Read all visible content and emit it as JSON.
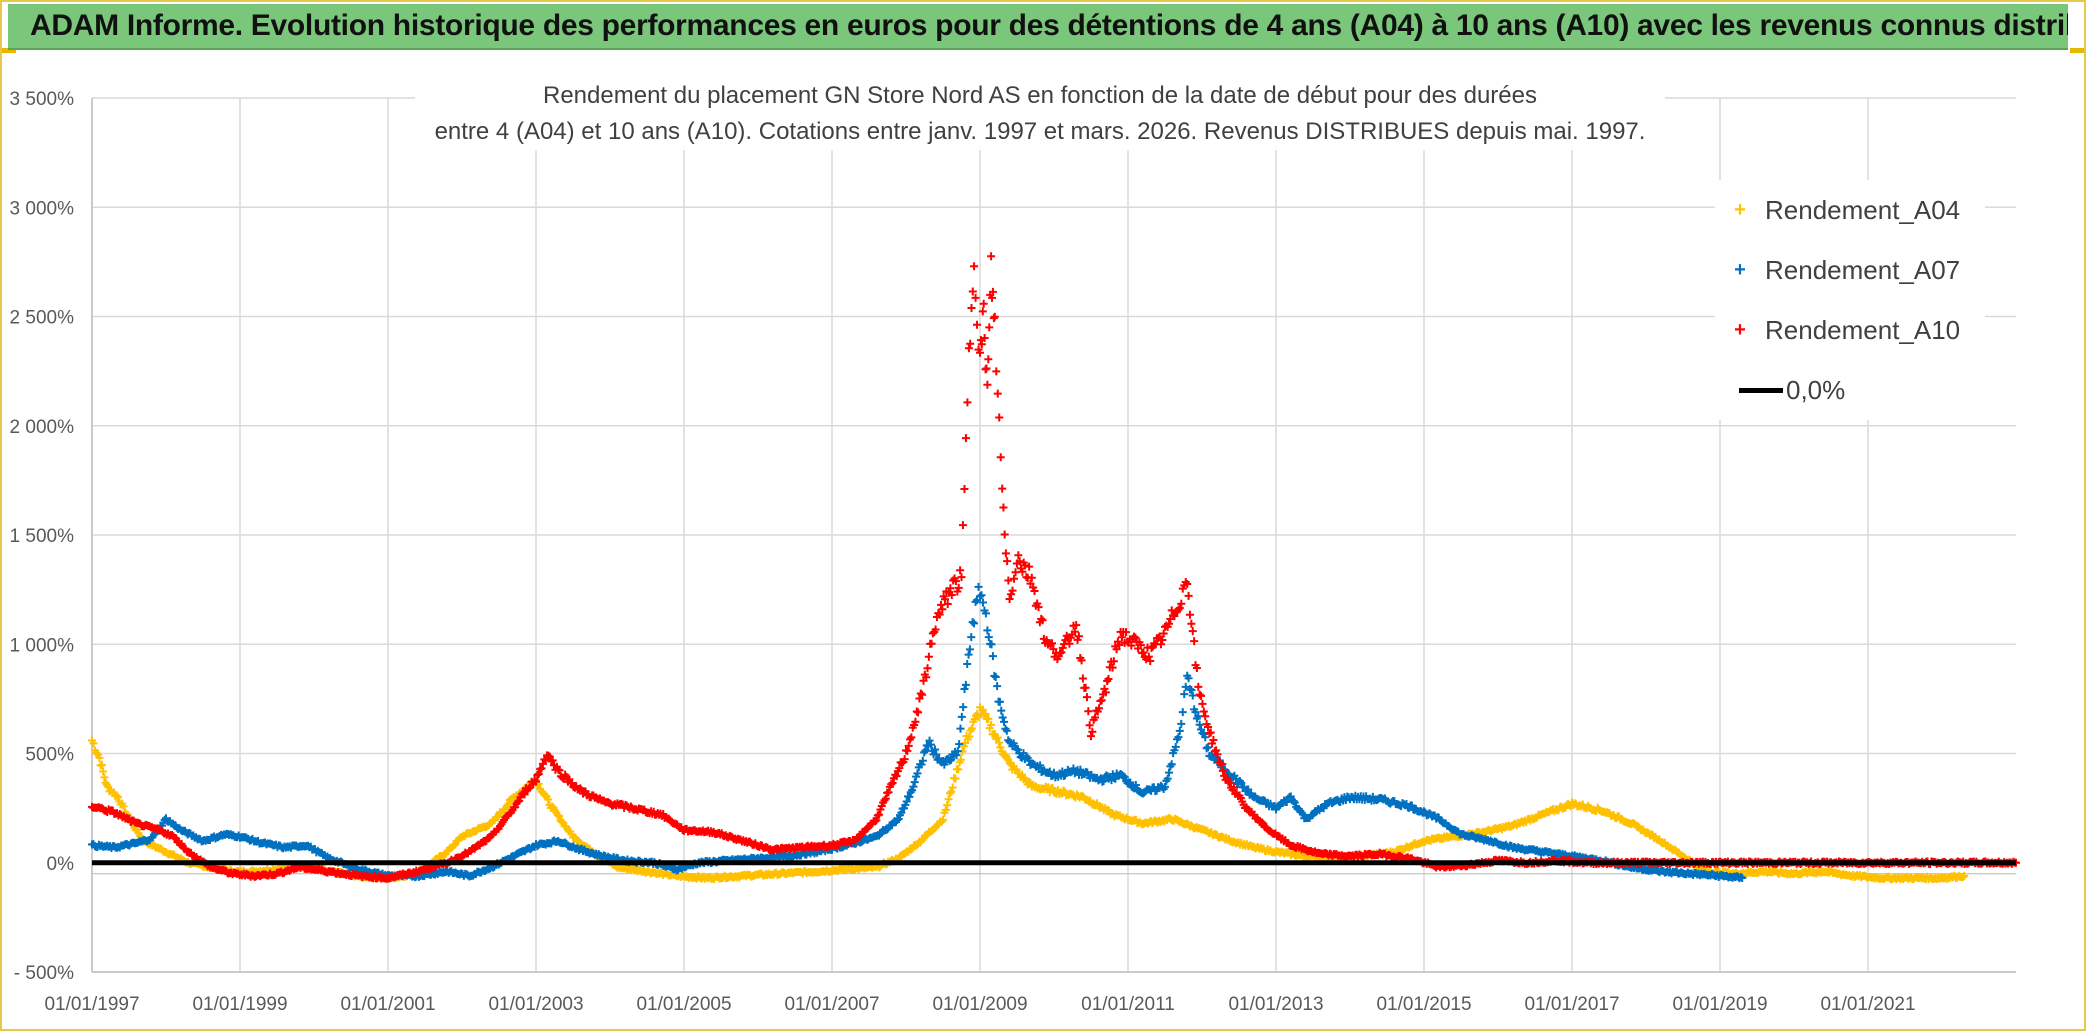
{
  "banner": {
    "title": "ADAM Informe. Evolution historique des performances en euros pour des détentions de 4 ans (A04) à 10 ans (A10) avec les revenus connus distribués"
  },
  "chart_data": {
    "type": "scatter",
    "title_line1": "Rendement du placement GN Store Nord AS en fonction de la date de début pour des durées",
    "title_line2": "entre 4 (A04) et 10 ans (A10). Cotations entre janv. 1997 et mars. 2026. Revenus DISTRIBUES depuis mai. 1997.",
    "y_ticks": [
      {
        "value": -500,
        "label": "- 500%"
      },
      {
        "value": 0,
        "label": "0%"
      },
      {
        "value": 500,
        "label": "500%"
      },
      {
        "value": 1000,
        "label": "1 000%"
      },
      {
        "value": 1500,
        "label": "1 500%"
      },
      {
        "value": 2000,
        "label": "2 000%"
      },
      {
        "value": 2500,
        "label": "2 500%"
      },
      {
        "value": 3000,
        "label": "3 000%"
      },
      {
        "value": 3500,
        "label": "3 500%"
      }
    ],
    "x_ticks": [
      {
        "value": 1997.0,
        "label": "01/01/1997"
      },
      {
        "value": 1999.0,
        "label": "01/01/1999"
      },
      {
        "value": 2001.0,
        "label": "01/01/2001"
      },
      {
        "value": 2003.0,
        "label": "01/01/2003"
      },
      {
        "value": 2005.0,
        "label": "01/01/2005"
      },
      {
        "value": 2007.0,
        "label": "01/01/2007"
      },
      {
        "value": 2009.0,
        "label": "01/01/2009"
      },
      {
        "value": 2011.0,
        "label": "01/01/2011"
      },
      {
        "value": 2013.0,
        "label": "01/01/2013"
      },
      {
        "value": 2015.0,
        "label": "01/01/2015"
      },
      {
        "value": 2017.0,
        "label": "01/01/2017"
      },
      {
        "value": 2019.0,
        "label": "01/01/2019"
      },
      {
        "value": 2021.0,
        "label": "01/01/2021"
      }
    ],
    "xlim": [
      1997.0,
      2023.0
    ],
    "ylim": [
      -500,
      3500
    ],
    "grid": true,
    "legend_position": "top-right",
    "series": [
      {
        "name": "Rendement_A04",
        "color": "#ffc000",
        "points": [
          [
            1997.0,
            560
          ],
          [
            1997.1,
            480
          ],
          [
            1997.2,
            350
          ],
          [
            1997.35,
            300
          ],
          [
            1997.5,
            200
          ],
          [
            1997.7,
            100
          ],
          [
            1998.0,
            50
          ],
          [
            1998.3,
            0
          ],
          [
            1998.6,
            -20
          ],
          [
            1998.9,
            -40
          ],
          [
            1999.2,
            -40
          ],
          [
            1999.5,
            -30
          ],
          [
            1999.8,
            -10
          ],
          [
            2000.2,
            -40
          ],
          [
            2000.6,
            -60
          ],
          [
            2001.0,
            -70
          ],
          [
            2001.4,
            -50
          ],
          [
            2001.8,
            50
          ],
          [
            2002.0,
            120
          ],
          [
            2002.4,
            180
          ],
          [
            2002.7,
            300
          ],
          [
            2003.0,
            380
          ],
          [
            2003.2,
            260
          ],
          [
            2003.5,
            120
          ],
          [
            2003.8,
            40
          ],
          [
            2004.1,
            -20
          ],
          [
            2004.5,
            -40
          ],
          [
            2004.9,
            -60
          ],
          [
            2005.3,
            -70
          ],
          [
            2005.8,
            -60
          ],
          [
            2006.3,
            -50
          ],
          [
            2006.8,
            -40
          ],
          [
            2007.2,
            -30
          ],
          [
            2007.6,
            -20
          ],
          [
            2007.9,
            20
          ],
          [
            2008.2,
            100
          ],
          [
            2008.5,
            200
          ],
          [
            2008.8,
            550
          ],
          [
            2009.0,
            700
          ],
          [
            2009.15,
            620
          ],
          [
            2009.4,
            450
          ],
          [
            2009.7,
            350
          ],
          [
            2010.0,
            330
          ],
          [
            2010.4,
            300
          ],
          [
            2010.8,
            220
          ],
          [
            2011.2,
            180
          ],
          [
            2011.6,
            200
          ],
          [
            2012.0,
            150
          ],
          [
            2012.4,
            100
          ],
          [
            2012.7,
            70
          ],
          [
            2013.0,
            50
          ],
          [
            2013.4,
            30
          ],
          [
            2013.8,
            20
          ],
          [
            2014.2,
            30
          ],
          [
            2014.6,
            50
          ],
          [
            2015.0,
            100
          ],
          [
            2015.4,
            120
          ],
          [
            2015.8,
            140
          ],
          [
            2016.2,
            170
          ],
          [
            2016.6,
            220
          ],
          [
            2017.0,
            270
          ],
          [
            2017.4,
            240
          ],
          [
            2017.8,
            180
          ],
          [
            2018.2,
            100
          ],
          [
            2018.5,
            30
          ],
          [
            2018.8,
            -40
          ],
          [
            2019.2,
            -50
          ],
          [
            2019.6,
            -40
          ],
          [
            2020.0,
            -50
          ],
          [
            2020.4,
            -40
          ],
          [
            2020.8,
            -60
          ],
          [
            2021.2,
            -70
          ],
          [
            2021.6,
            -70
          ],
          [
            2022.0,
            -70
          ],
          [
            2022.3,
            -60
          ]
        ]
      },
      {
        "name": "Rendement_A07",
        "color": "#0070c0",
        "points": [
          [
            1997.0,
            80
          ],
          [
            1997.3,
            70
          ],
          [
            1997.6,
            90
          ],
          [
            1997.8,
            110
          ],
          [
            1998.0,
            200
          ],
          [
            1998.2,
            150
          ],
          [
            1998.5,
            100
          ],
          [
            1998.8,
            130
          ],
          [
            1999.0,
            120
          ],
          [
            1999.3,
            90
          ],
          [
            1999.6,
            70
          ],
          [
            1999.9,
            80
          ],
          [
            2000.2,
            20
          ],
          [
            2000.6,
            -30
          ],
          [
            2001.0,
            -60
          ],
          [
            2001.4,
            -60
          ],
          [
            2001.8,
            -40
          ],
          [
            2002.1,
            -60
          ],
          [
            2002.4,
            -20
          ],
          [
            2002.7,
            30
          ],
          [
            2003.0,
            80
          ],
          [
            2003.3,
            100
          ],
          [
            2003.6,
            60
          ],
          [
            2003.9,
            30
          ],
          [
            2004.2,
            10
          ],
          [
            2004.6,
            0
          ],
          [
            2004.9,
            -30
          ],
          [
            2005.2,
            0
          ],
          [
            2005.6,
            10
          ],
          [
            2006.0,
            20
          ],
          [
            2006.4,
            30
          ],
          [
            2006.8,
            50
          ],
          [
            2007.2,
            80
          ],
          [
            2007.6,
            120
          ],
          [
            2007.9,
            200
          ],
          [
            2008.1,
            350
          ],
          [
            2008.3,
            550
          ],
          [
            2008.5,
            450
          ],
          [
            2008.7,
            500
          ],
          [
            2008.9,
            1100
          ],
          [
            2009.0,
            1250
          ],
          [
            2009.1,
            1100
          ],
          [
            2009.25,
            750
          ],
          [
            2009.4,
            550
          ],
          [
            2009.7,
            450
          ],
          [
            2010.0,
            400
          ],
          [
            2010.3,
            420
          ],
          [
            2010.6,
            380
          ],
          [
            2010.9,
            400
          ],
          [
            2011.2,
            320
          ],
          [
            2011.5,
            350
          ],
          [
            2011.7,
            600
          ],
          [
            2011.8,
            850
          ],
          [
            2011.95,
            650
          ],
          [
            2012.1,
            500
          ],
          [
            2012.4,
            400
          ],
          [
            2012.7,
            300
          ],
          [
            2013.0,
            250
          ],
          [
            2013.2,
            300
          ],
          [
            2013.4,
            200
          ],
          [
            2013.7,
            270
          ],
          [
            2014.0,
            300
          ],
          [
            2014.4,
            290
          ],
          [
            2014.8,
            260
          ],
          [
            2015.2,
            200
          ],
          [
            2015.5,
            130
          ],
          [
            2015.9,
            100
          ],
          [
            2016.2,
            70
          ],
          [
            2016.6,
            50
          ],
          [
            2017.0,
            30
          ],
          [
            2017.4,
            10
          ],
          [
            2017.8,
            -20
          ],
          [
            2018.2,
            -40
          ],
          [
            2018.6,
            -50
          ],
          [
            2019.0,
            -60
          ],
          [
            2019.3,
            -70
          ]
        ]
      },
      {
        "name": "Rendement_A10",
        "color": "#ff0000",
        "points": [
          [
            1997.0,
            260
          ],
          [
            1997.3,
            230
          ],
          [
            1997.6,
            180
          ],
          [
            1997.9,
            150
          ],
          [
            1998.1,
            120
          ],
          [
            1998.3,
            50
          ],
          [
            1998.6,
            -20
          ],
          [
            1998.9,
            -50
          ],
          [
            1999.2,
            -60
          ],
          [
            1999.5,
            -50
          ],
          [
            1999.8,
            -20
          ],
          [
            2000.2,
            -40
          ],
          [
            2000.6,
            -60
          ],
          [
            2001.0,
            -70
          ],
          [
            2001.4,
            -40
          ],
          [
            2001.8,
            0
          ],
          [
            2002.1,
            50
          ],
          [
            2002.4,
            120
          ],
          [
            2002.7,
            250
          ],
          [
            2002.9,
            350
          ],
          [
            2003.0,
            380
          ],
          [
            2003.15,
            500
          ],
          [
            2003.3,
            420
          ],
          [
            2003.6,
            330
          ],
          [
            2003.9,
            280
          ],
          [
            2004.3,
            250
          ],
          [
            2004.7,
            220
          ],
          [
            2005.0,
            150
          ],
          [
            2005.4,
            140
          ],
          [
            2005.8,
            100
          ],
          [
            2006.2,
            60
          ],
          [
            2006.6,
            70
          ],
          [
            2007.0,
            80
          ],
          [
            2007.3,
            100
          ],
          [
            2007.6,
            200
          ],
          [
            2007.8,
            350
          ],
          [
            2008.0,
            500
          ],
          [
            2008.2,
            750
          ],
          [
            2008.4,
            1100
          ],
          [
            2008.6,
            1250
          ],
          [
            2008.75,
            1300
          ],
          [
            2008.85,
            2300
          ],
          [
            2008.92,
            2800
          ],
          [
            2009.0,
            2300
          ],
          [
            2009.05,
            2500
          ],
          [
            2009.1,
            2150
          ],
          [
            2009.15,
            2700
          ],
          [
            2009.2,
            2450
          ],
          [
            2009.3,
            1700
          ],
          [
            2009.4,
            1200
          ],
          [
            2009.5,
            1400
          ],
          [
            2009.7,
            1300
          ],
          [
            2009.9,
            1000
          ],
          [
            2010.1,
            950
          ],
          [
            2010.3,
            1100
          ],
          [
            2010.5,
            600
          ],
          [
            2010.7,
            800
          ],
          [
            2010.9,
            1050
          ],
          [
            2011.1,
            1000
          ],
          [
            2011.3,
            950
          ],
          [
            2011.5,
            1050
          ],
          [
            2011.7,
            1200
          ],
          [
            2011.8,
            1300
          ],
          [
            2011.95,
            800
          ],
          [
            2012.1,
            600
          ],
          [
            2012.3,
            400
          ],
          [
            2012.6,
            250
          ],
          [
            2012.9,
            150
          ],
          [
            2013.2,
            80
          ],
          [
            2013.6,
            40
          ],
          [
            2014.0,
            30
          ],
          [
            2014.4,
            40
          ],
          [
            2014.8,
            20
          ],
          [
            2015.2,
            -20
          ],
          [
            2015.6,
            -10
          ],
          [
            2016.0,
            10
          ],
          [
            2016.4,
            0
          ],
          [
            2016.8,
            10
          ],
          [
            2017.2,
            0
          ],
          [
            2017.6,
            0
          ],
          [
            2018.0,
            0
          ],
          [
            2018.5,
            0
          ],
          [
            2019.0,
            0
          ],
          [
            2019.5,
            0
          ],
          [
            2020.0,
            0
          ],
          [
            2020.5,
            0
          ],
          [
            2021.0,
            0
          ],
          [
            2021.5,
            0
          ],
          [
            2022.0,
            0
          ],
          [
            2022.5,
            0
          ],
          [
            2023.0,
            0
          ]
        ]
      }
    ],
    "zero_line": {
      "name": "0,0%",
      "value": 0,
      "color": "#000000"
    }
  },
  "legend": {
    "a04": "Rendement_A04",
    "a07": "Rendement_A07",
    "a10": "Rendement_A10",
    "zero": "0,0%"
  }
}
